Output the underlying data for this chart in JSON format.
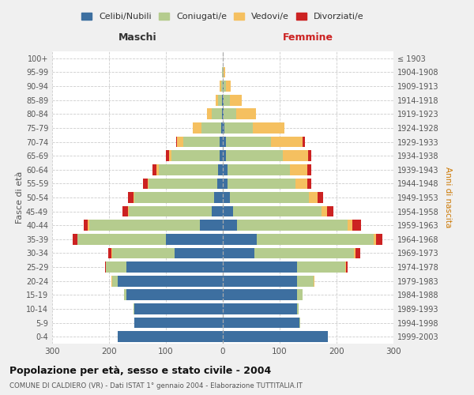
{
  "age_groups": [
    "0-4",
    "5-9",
    "10-14",
    "15-19",
    "20-24",
    "25-29",
    "30-34",
    "35-39",
    "40-44",
    "45-49",
    "50-54",
    "55-59",
    "60-64",
    "65-69",
    "70-74",
    "75-79",
    "80-84",
    "85-89",
    "90-94",
    "95-99",
    "100+"
  ],
  "birth_years": [
    "1999-2003",
    "1994-1998",
    "1989-1993",
    "1984-1988",
    "1979-1983",
    "1974-1978",
    "1969-1973",
    "1964-1968",
    "1959-1963",
    "1954-1958",
    "1949-1953",
    "1944-1948",
    "1939-1943",
    "1934-1938",
    "1929-1933",
    "1924-1928",
    "1919-1923",
    "1914-1918",
    "1909-1913",
    "1904-1908",
    "≤ 1903"
  ],
  "male": {
    "celibi": [
      185,
      155,
      155,
      170,
      185,
      170,
      85,
      100,
      40,
      20,
      15,
      10,
      8,
      5,
      5,
      3,
      2,
      1,
      0,
      0,
      0
    ],
    "coniugati": [
      0,
      1,
      2,
      4,
      10,
      35,
      110,
      155,
      195,
      145,
      140,
      120,
      105,
      85,
      65,
      35,
      18,
      8,
      3,
      1,
      0
    ],
    "vedovi": [
      0,
      0,
      0,
      0,
      1,
      0,
      1,
      1,
      2,
      2,
      2,
      2,
      3,
      5,
      10,
      15,
      8,
      4,
      2,
      1,
      0
    ],
    "divorziati": [
      0,
      0,
      0,
      0,
      0,
      2,
      5,
      8,
      8,
      10,
      10,
      8,
      8,
      5,
      2,
      0,
      0,
      0,
      0,
      0,
      0
    ]
  },
  "female": {
    "nubili": [
      185,
      135,
      130,
      130,
      130,
      130,
      55,
      60,
      25,
      18,
      12,
      8,
      8,
      5,
      5,
      3,
      2,
      1,
      1,
      0,
      0
    ],
    "coniugate": [
      0,
      1,
      3,
      10,
      30,
      85,
      175,
      205,
      195,
      155,
      140,
      120,
      110,
      100,
      80,
      50,
      22,
      12,
      5,
      2,
      0
    ],
    "vedove": [
      0,
      0,
      0,
      0,
      1,
      2,
      3,
      5,
      8,
      10,
      15,
      20,
      30,
      45,
      55,
      55,
      35,
      20,
      8,
      2,
      0
    ],
    "divorziate": [
      0,
      0,
      0,
      0,
      0,
      3,
      8,
      10,
      15,
      12,
      10,
      8,
      8,
      5,
      5,
      0,
      0,
      0,
      0,
      0,
      0
    ]
  },
  "colors": {
    "celibi": "#3d6fa0",
    "coniugati": "#b5cc8e",
    "vedovi": "#f5c060",
    "divorziati": "#cc2222"
  },
  "xlim": 300,
  "title": "Popolazione per età, sesso e stato civile - 2004",
  "subtitle": "COMUNE DI CALDIERO (VR) - Dati ISTAT 1° gennaio 2004 - Elaborazione TUTTITALIA.IT",
  "ylabel_left": "Fasce di età",
  "ylabel_right": "Anni di nascita",
  "xlabel_left": "Maschi",
  "xlabel_right": "Femmine",
  "bg_color": "#f0f0f0",
  "plot_bg_color": "#ffffff"
}
